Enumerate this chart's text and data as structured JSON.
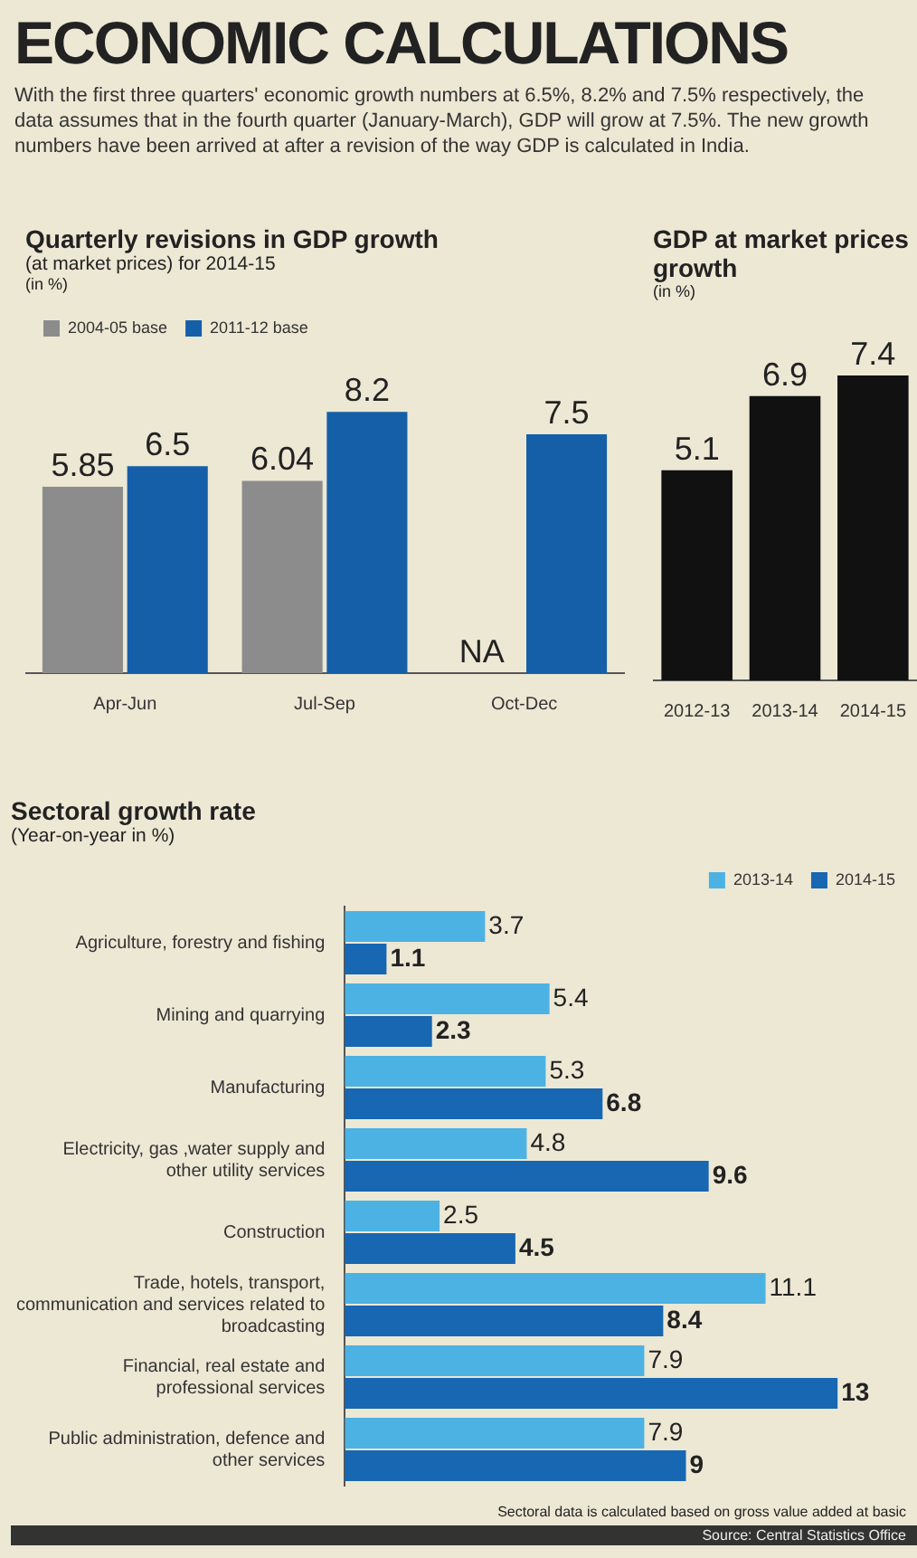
{
  "chart_data": [
    {
      "type": "other",
      "title": "ECONOMIC CALCULATIONS",
      "subtitle": "With the first three quarters' economic growth numbers at 6.5%, 8.2% and 7.5% respectively, the data assumes that in the fourth quarter (January-March), GDP will grow at 7.5%. The new growth numbers have been arrived at after a revision of the way GDP is calculated in India."
    },
    {
      "type": "bar",
      "title": "Quarterly revisions in GDP growth",
      "subtitle": "(at market prices) for 2014-15",
      "ylabel": "(in %)",
      "categories": [
        "Apr-Jun",
        "Jul-Sep",
        "Oct-Dec"
      ],
      "legend": "top left",
      "tick_labels": "x",
      "series": [
        {
          "name": "2004-05 base",
          "color": "#8c8c8c",
          "values": [
            5.85,
            6.04,
            null
          ],
          "value_labels": [
            "5.85",
            "6.04",
            "NA"
          ]
        },
        {
          "name": "2011-12 base",
          "color": "#145fa8",
          "values": [
            6.5,
            8.2,
            7.5
          ],
          "value_labels": [
            "6.5",
            "8.2",
            "7.5"
          ]
        }
      ]
    },
    {
      "type": "bar",
      "title": "GDP at market prices growth",
      "ylabel": "(in %)",
      "categories": [
        "2012-13",
        "2013-14",
        "2014-15"
      ],
      "values": [
        5.1,
        6.9,
        7.4
      ],
      "color": "#111111",
      "data_labels": true,
      "tick_labels": "x"
    },
    {
      "type": "bar",
      "orientation": "horizontal",
      "title": "Sectoral growth rate",
      "subtitle": "(Year-on-year in %)",
      "legend": "top right",
      "data_labels": true,
      "tick_labels": "y",
      "categories": [
        "Agriculture, forestry and fishing",
        "Mining and quarrying",
        "Manufacturing",
        "Electricity, gas ,water supply and other utility services",
        "Construction",
        "Trade, hotels, transport, communication and services related to broadcasting",
        "Financial, real estate and professional services",
        "Public administration, defence and other services"
      ],
      "series": [
        {
          "name": "2013-14",
          "color": "#4cb2e4",
          "values": [
            3.7,
            5.4,
            5.3,
            4.8,
            2.5,
            11.1,
            7.9,
            7.9
          ]
        },
        {
          "name": "2014-15",
          "color": "#1767b3",
          "values": [
            1.1,
            2.3,
            6.8,
            9.6,
            4.5,
            8.4,
            13,
            9
          ]
        }
      ],
      "annotations": [
        "Sectoral data is calculated based on gross value added at basic",
        "Source: Central Statistics Office"
      ]
    }
  ]
}
